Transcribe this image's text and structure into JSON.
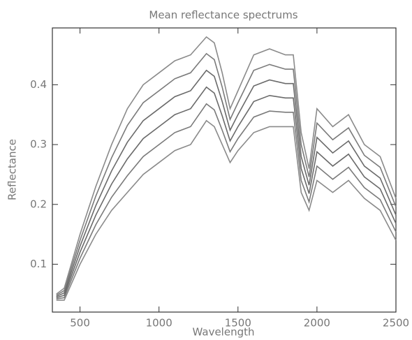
{
  "chart_data": {
    "type": "line",
    "title": "Mean reflectance spectrums",
    "xlabel": "Wavelength",
    "ylabel": "Reflectance",
    "x": [
      350,
      400,
      500,
      600,
      700,
      800,
      900,
      1000,
      1100,
      1200,
      1300,
      1350,
      1400,
      1450,
      1500,
      1600,
      1700,
      1800,
      1850,
      1900,
      1950,
      2000,
      2100,
      2200,
      2300,
      2400,
      2500
    ],
    "series": [
      {
        "color": "#8a8a8a",
        "values": [
          0.04,
          0.04,
          0.1,
          0.15,
          0.19,
          0.22,
          0.25,
          0.27,
          0.29,
          0.3,
          0.34,
          0.33,
          0.3,
          0.27,
          0.29,
          0.32,
          0.33,
          0.33,
          0.33,
          0.22,
          0.19,
          0.24,
          0.22,
          0.24,
          0.21,
          0.19,
          0.14
        ]
      },
      {
        "color": "#7a7a7a",
        "values": [
          0.042,
          0.044,
          0.11,
          0.166,
          0.212,
          0.248,
          0.28,
          0.3,
          0.32,
          0.33,
          0.368,
          0.358,
          0.324,
          0.288,
          0.31,
          0.346,
          0.356,
          0.354,
          0.354,
          0.24,
          0.204,
          0.264,
          0.242,
          0.262,
          0.228,
          0.208,
          0.154
        ]
      },
      {
        "color": "#6a6a6a",
        "values": [
          0.044,
          0.048,
          0.12,
          0.182,
          0.234,
          0.276,
          0.31,
          0.33,
          0.35,
          0.36,
          0.396,
          0.386,
          0.348,
          0.306,
          0.33,
          0.372,
          0.382,
          0.378,
          0.378,
          0.26,
          0.218,
          0.288,
          0.264,
          0.284,
          0.246,
          0.226,
          0.168
        ]
      },
      {
        "color": "#6a6a6a",
        "values": [
          0.046,
          0.052,
          0.13,
          0.198,
          0.256,
          0.304,
          0.34,
          0.36,
          0.38,
          0.39,
          0.424,
          0.414,
          0.372,
          0.324,
          0.35,
          0.398,
          0.408,
          0.402,
          0.402,
          0.28,
          0.232,
          0.312,
          0.286,
          0.306,
          0.264,
          0.244,
          0.182
        ]
      },
      {
        "color": "#7a7a7a",
        "values": [
          0.048,
          0.056,
          0.14,
          0.214,
          0.278,
          0.332,
          0.37,
          0.39,
          0.41,
          0.42,
          0.452,
          0.442,
          0.396,
          0.342,
          0.37,
          0.424,
          0.434,
          0.426,
          0.426,
          0.3,
          0.246,
          0.336,
          0.308,
          0.328,
          0.282,
          0.262,
          0.196
        ]
      },
      {
        "color": "#8a8a8a",
        "values": [
          0.05,
          0.06,
          0.15,
          0.23,
          0.3,
          0.36,
          0.4,
          0.42,
          0.44,
          0.45,
          0.48,
          0.47,
          0.42,
          0.36,
          0.39,
          0.45,
          0.46,
          0.45,
          0.45,
          0.32,
          0.26,
          0.36,
          0.33,
          0.35,
          0.3,
          0.28,
          0.21
        ]
      }
    ],
    "xlim": [
      325,
      2500
    ],
    "xticks": [
      500,
      1000,
      1500,
      2000,
      2500
    ],
    "ylim": [
      0.02,
      0.495
    ],
    "yticks": [
      0.1,
      0.2,
      0.3,
      0.4
    ]
  }
}
